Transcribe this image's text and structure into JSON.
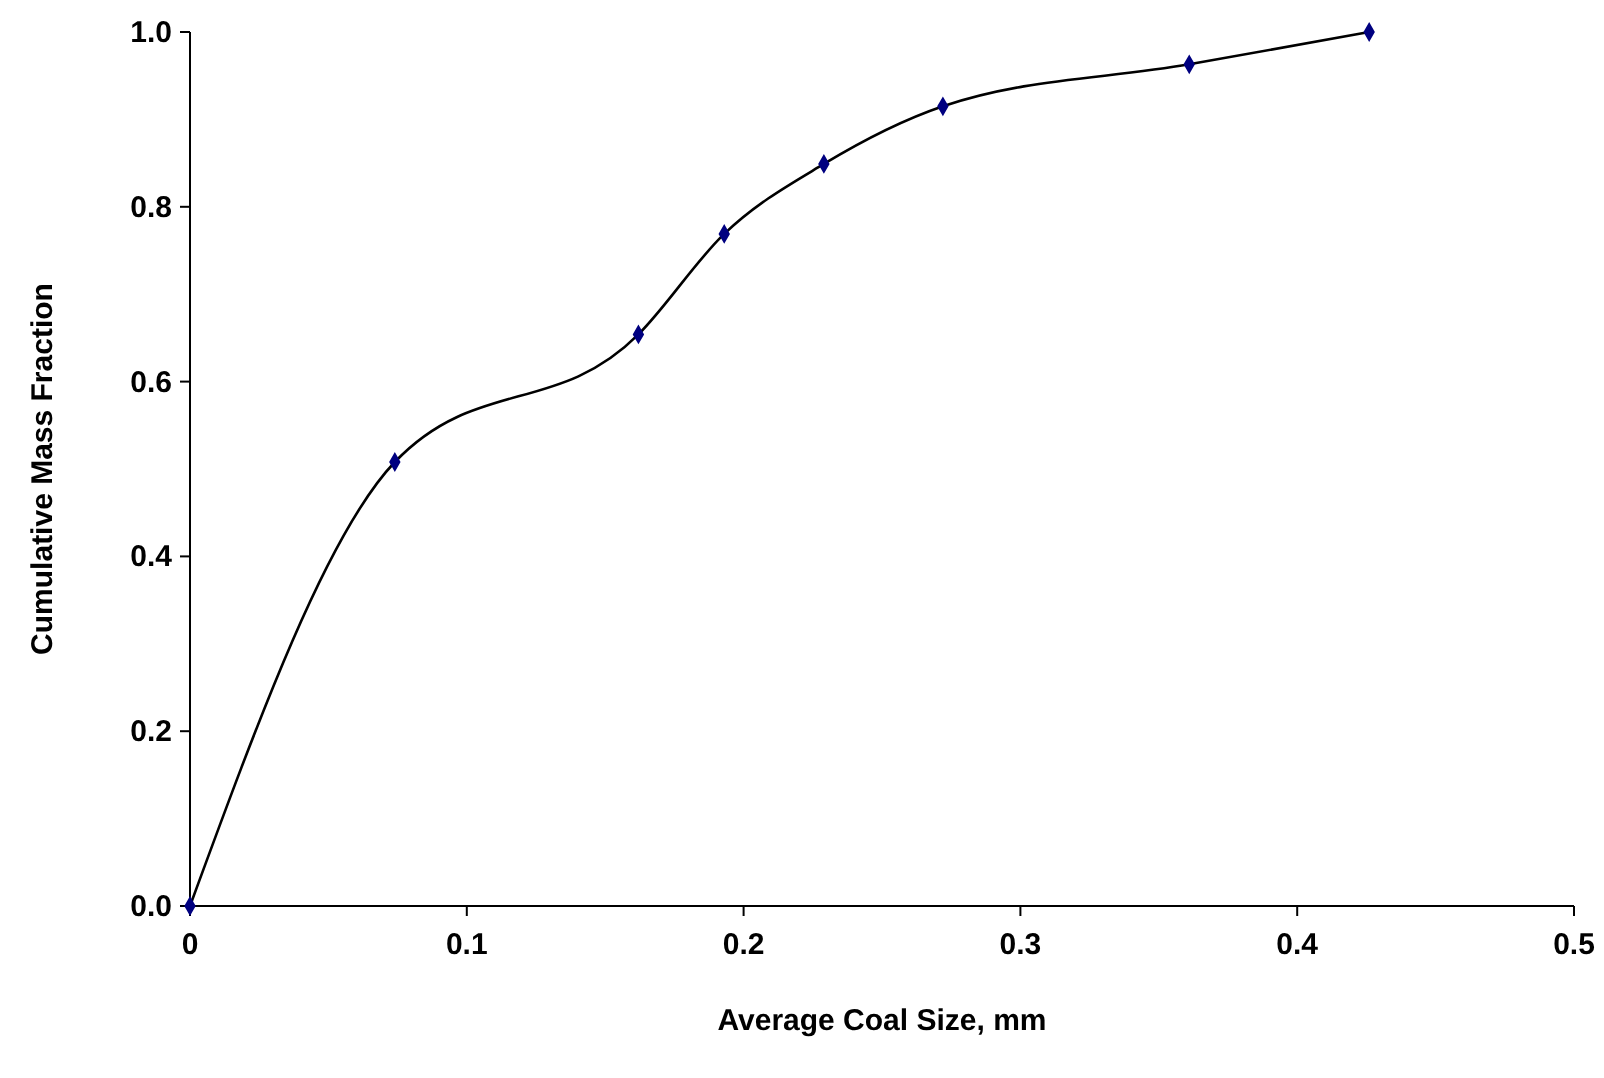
{
  "chart_data": {
    "type": "line",
    "xlabel": "Average Coal Size, mm",
    "ylabel": "Cumulative Mass Fraction",
    "x": [
      0,
      0.074,
      0.162,
      0.193,
      0.229,
      0.272,
      0.361,
      0.426
    ],
    "series": [
      {
        "color": "#000080",
        "values": [
          0,
          0.508,
          0.654,
          0.769,
          0.849,
          0.915,
          0.963,
          1.0
        ]
      }
    ],
    "xlim": [
      0,
      0.5
    ],
    "xticks": [
      0,
      0.1,
      0.2,
      0.3,
      0.4,
      0.5
    ],
    "ylim": [
      0,
      1
    ],
    "yticks": [
      {
        "value": 0,
        "label": "0.0"
      },
      {
        "value": 0.2,
        "label": "0.2"
      },
      {
        "value": 0.4,
        "label": "0.4"
      },
      {
        "value": 0.6,
        "label": "0.6"
      },
      {
        "value": 0.8,
        "label": "0.8"
      },
      {
        "value": 1,
        "label": "1.0"
      }
    ],
    "marker": "diamond"
  }
}
